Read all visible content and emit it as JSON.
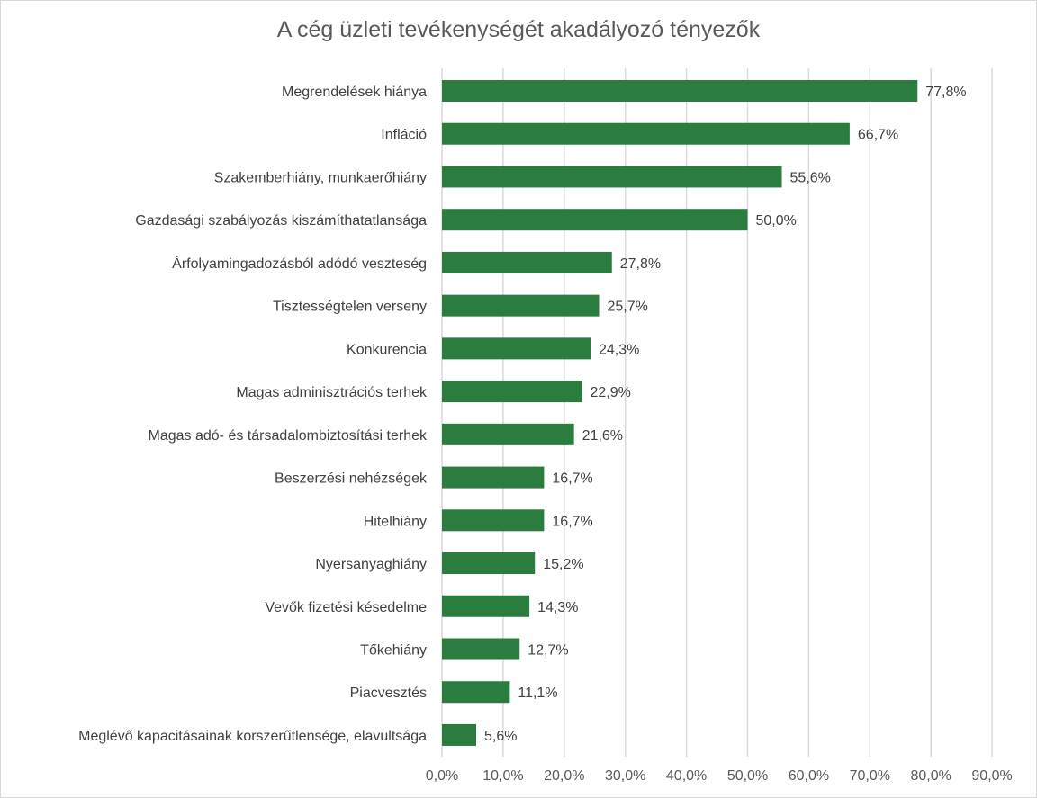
{
  "chart_data": {
    "type": "bar",
    "orientation": "horizontal",
    "title": "A cég üzleti tevékenységét akadályozó tényezők",
    "categories": [
      "Megrendelések hiánya",
      "Infláció",
      "Szakemberhiány, munkaerőhiány",
      "Gazdasági szabályozás kiszámíthatatlansága",
      "Árfolyamingadozásból adódó veszteség",
      "Tisztességtelen verseny",
      "Konkurencia",
      "Magas adminisztrációs terhek",
      "Magas adó- és társadalombiztosítási terhek",
      "Beszerzési nehézségek",
      "Hitelhiány",
      "Nyersanyaghiány",
      "Vevők fizetési késedelme",
      "Tőkehiány",
      "Piacvesztés",
      "Meglévő kapacitásainak korszerűtlensége, elavultsága"
    ],
    "values": [
      77.8,
      66.7,
      55.6,
      50.0,
      27.8,
      25.7,
      24.3,
      22.9,
      21.6,
      16.7,
      16.7,
      15.2,
      14.3,
      12.7,
      11.1,
      5.6
    ],
    "value_labels": [
      "77,8%",
      "66,7%",
      "55,6%",
      "50,0%",
      "27,8%",
      "25,7%",
      "24,3%",
      "22,9%",
      "21,6%",
      "16,7%",
      "16,7%",
      "15,2%",
      "14,3%",
      "12,7%",
      "11,1%",
      "5,6%"
    ],
    "xlim": [
      0,
      90
    ],
    "x_ticks": [
      "0,0%",
      "10,0%",
      "20,0%",
      "30,0%",
      "40,0%",
      "50,0%",
      "60,0%",
      "70,0%",
      "80,0%",
      "90,0%"
    ],
    "grid": "vertical",
    "legend": "none",
    "bar_color": "#2a7d3f",
    "xlabel": "",
    "ylabel": ""
  }
}
